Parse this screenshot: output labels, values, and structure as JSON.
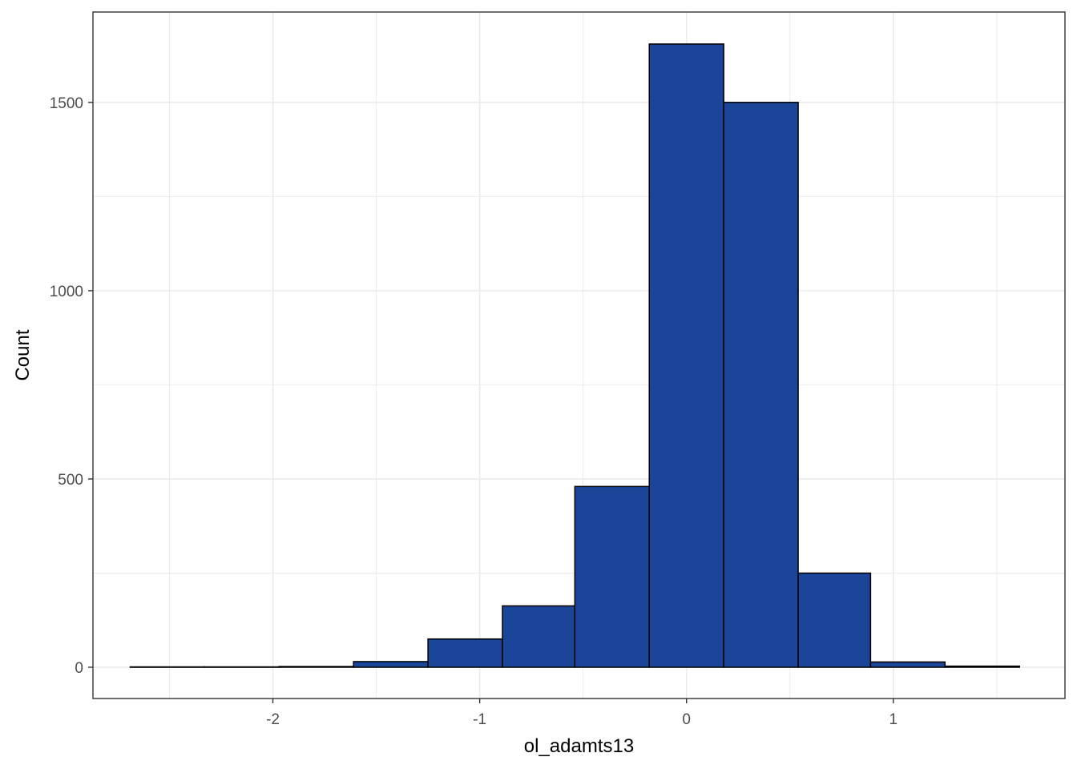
{
  "chart_data": {
    "type": "bar",
    "subtype": "histogram",
    "title": "",
    "xlabel": "ol_adamts13",
    "ylabel": "Count",
    "xlim": [
      -2.87,
      1.83
    ],
    "ylim": [
      -83,
      1740
    ],
    "x_ticks": [
      -2,
      -1,
      0,
      1
    ],
    "x_tick_labels": [
      "-2",
      "-1",
      "0",
      "1"
    ],
    "y_ticks": [
      0,
      500,
      1000,
      1500
    ],
    "y_tick_labels": [
      "0",
      "500",
      "1000",
      "1500"
    ],
    "x_minor_grid": [
      -2.5,
      -1.5,
      -0.5,
      0.5,
      1.5
    ],
    "y_minor_grid": [
      250,
      750,
      1250
    ],
    "grid": true,
    "bin_edges": [
      -2.69,
      -2.33,
      -1.97,
      -1.61,
      -1.25,
      -0.89,
      -0.54,
      -0.18,
      0.18,
      0.54,
      0.89,
      1.25,
      1.61
    ],
    "values": [
      1,
      1,
      2,
      15,
      75,
      163,
      480,
      1655,
      1500,
      250,
      14,
      3
    ],
    "colors": {
      "bar_fill": "#1a4599",
      "bar_stroke": "#000000",
      "grid": "#ebebeb",
      "panel_border": "#333333",
      "tick_text": "#4d4d4d"
    }
  }
}
